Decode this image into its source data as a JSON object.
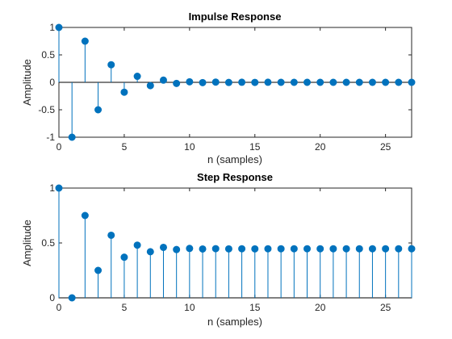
{
  "chart_data": [
    {
      "type": "stem",
      "title": "Impulse Response",
      "xlabel": "n (samples)",
      "ylabel": "Amplitude",
      "xlim": [
        0,
        27
      ],
      "ylim": [
        -1,
        1
      ],
      "xticks": [
        0,
        5,
        10,
        15,
        20,
        25
      ],
      "yticks": [
        -1,
        -0.5,
        0,
        0.5,
        1
      ],
      "ytick_labels": [
        "-1",
        "-0.5",
        "0",
        "0.5",
        "1"
      ],
      "baseline": 0,
      "grid": false,
      "color": "#0072BD",
      "x": [
        0,
        1,
        2,
        3,
        4,
        5,
        6,
        7,
        8,
        9,
        10,
        11,
        12,
        13,
        14,
        15,
        16,
        17,
        18,
        19,
        20,
        21,
        22,
        23,
        24,
        25,
        26,
        27
      ],
      "y": [
        1,
        -1,
        0.75,
        -0.5,
        0.32,
        -0.18,
        0.11,
        -0.06,
        0.04,
        -0.02,
        0.01,
        -0.005,
        0.004,
        -0.002,
        0.001,
        -0.001,
        0.001,
        0,
        0,
        0,
        0,
        0,
        0,
        0,
        0,
        0,
        0,
        0
      ]
    },
    {
      "type": "stem",
      "title": "Step Response",
      "xlabel": "n (samples)",
      "ylabel": "Amplitude",
      "xlim": [
        0,
        27
      ],
      "ylim": [
        0,
        1
      ],
      "xticks": [
        0,
        5,
        10,
        15,
        20,
        25
      ],
      "yticks": [
        0,
        0.5,
        1
      ],
      "ytick_labels": [
        "0",
        "0.5",
        "1"
      ],
      "baseline": 0,
      "grid": false,
      "color": "#0072BD",
      "x": [
        0,
        1,
        2,
        3,
        4,
        5,
        6,
        7,
        8,
        9,
        10,
        11,
        12,
        13,
        14,
        15,
        16,
        17,
        18,
        19,
        20,
        21,
        22,
        23,
        24,
        25,
        26,
        27
      ],
      "y": [
        1,
        0,
        0.75,
        0.25,
        0.57,
        0.37,
        0.48,
        0.42,
        0.46,
        0.44,
        0.45,
        0.445,
        0.448,
        0.446,
        0.447,
        0.446,
        0.447,
        0.447,
        0.447,
        0.447,
        0.447,
        0.447,
        0.447,
        0.447,
        0.447,
        0.447,
        0.447,
        0.447
      ]
    }
  ]
}
